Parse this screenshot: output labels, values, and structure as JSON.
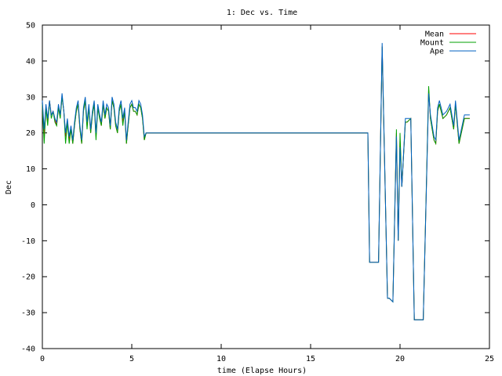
{
  "chart_data": {
    "type": "line",
    "title": "1: Dec vs. Time",
    "xlabel": "time (Elapse Hours)",
    "ylabel": "Dec",
    "xlim": [
      0,
      25
    ],
    "ylim": [
      -40,
      50
    ],
    "xticks": [
      0,
      5,
      10,
      15,
      20,
      25
    ],
    "yticks": [
      -40,
      -30,
      -20,
      -10,
      0,
      10,
      20,
      30,
      40,
      50
    ],
    "grid": false,
    "legend_position": "top-right",
    "series": [
      {
        "name": "Mean",
        "color": "#ff0000",
        "x": [
          0.0,
          0.1,
          0.2,
          0.3,
          0.4,
          0.5,
          0.6,
          0.7,
          0.8,
          0.9,
          1.0,
          1.1,
          1.2,
          1.3,
          1.4,
          1.5,
          1.6,
          1.7,
          1.8,
          1.9,
          2.0,
          2.1,
          2.2,
          2.3,
          2.4,
          2.5,
          2.6,
          2.7,
          2.8,
          2.9,
          3.0,
          3.1,
          3.2,
          3.3,
          3.4,
          3.5,
          3.6,
          3.7,
          3.8,
          3.9,
          4.0,
          4.1,
          4.2,
          4.3,
          4.4,
          4.5,
          4.6,
          4.7,
          4.8,
          4.9,
          5.0,
          5.1,
          5.2,
          5.3,
          5.4,
          5.5,
          5.6,
          5.7,
          5.8,
          18.2,
          18.3,
          18.5,
          18.6,
          18.8,
          19.0,
          19.3,
          19.4,
          19.6,
          19.8,
          19.9,
          20.0,
          20.1,
          20.3,
          20.4,
          20.6,
          20.8,
          20.9,
          21.0,
          21.3,
          21.6,
          21.7,
          21.8,
          21.9,
          22.0,
          22.1,
          22.2,
          22.4,
          22.6,
          22.8,
          23.0,
          23.1,
          23.3,
          23.6,
          23.9
        ],
        "y": [
          28,
          19,
          27,
          23,
          29,
          25,
          26,
          24,
          22,
          27,
          25,
          30,
          26,
          19,
          23,
          18,
          21,
          17,
          22,
          26,
          28,
          21,
          17,
          26,
          29,
          22,
          27,
          20,
          25,
          28,
          19,
          27,
          25,
          22,
          28,
          24,
          27,
          26,
          21,
          29,
          27,
          22,
          20,
          26,
          28,
          23,
          26,
          17,
          22,
          27,
          28,
          26,
          26,
          25,
          28,
          27,
          24,
          18,
          20,
          20,
          -16,
          -16,
          -16,
          -16,
          44,
          -26,
          -26,
          -27,
          20,
          -10,
          18,
          5,
          23,
          23,
          24,
          -32,
          -32,
          -32,
          -32,
          32,
          24,
          21,
          18,
          17,
          26,
          28,
          24,
          25,
          27,
          21,
          28,
          17,
          24,
          24
        ]
      },
      {
        "name": "Mount",
        "color": "#00a000",
        "x": [
          0.0,
          0.1,
          0.2,
          0.3,
          0.4,
          0.5,
          0.6,
          0.7,
          0.8,
          0.9,
          1.0,
          1.1,
          1.2,
          1.3,
          1.4,
          1.5,
          1.6,
          1.7,
          1.8,
          1.9,
          2.0,
          2.1,
          2.2,
          2.3,
          2.4,
          2.5,
          2.6,
          2.7,
          2.8,
          2.9,
          3.0,
          3.1,
          3.2,
          3.3,
          3.4,
          3.5,
          3.6,
          3.7,
          3.8,
          3.9,
          4.0,
          4.1,
          4.2,
          4.3,
          4.4,
          4.5,
          4.6,
          4.7,
          4.8,
          4.9,
          5.0,
          5.1,
          5.2,
          5.3,
          5.4,
          5.5,
          5.6,
          5.7,
          5.8,
          18.2,
          18.3,
          18.5,
          18.6,
          18.8,
          19.0,
          19.3,
          19.4,
          19.6,
          19.8,
          19.9,
          20.0,
          20.1,
          20.3,
          20.4,
          20.6,
          20.8,
          20.9,
          21.0,
          21.3,
          21.6,
          21.7,
          21.8,
          21.9,
          22.0,
          22.1,
          22.2,
          22.4,
          22.6,
          22.8,
          23.0,
          23.1,
          23.3,
          23.6,
          23.9
        ],
        "y": [
          28,
          17,
          27,
          22,
          29,
          24,
          26,
          23,
          22,
          27,
          24,
          30,
          26,
          17,
          23,
          17,
          21,
          17,
          22,
          26,
          28,
          21,
          17,
          26,
          29,
          21,
          27,
          20,
          25,
          28,
          18,
          27,
          24,
          22,
          28,
          24,
          27,
          26,
          21,
          29,
          27,
          22,
          20,
          26,
          28,
          22,
          26,
          17,
          22,
          27,
          28,
          26,
          26,
          25,
          28,
          27,
          24,
          18,
          20,
          20,
          -16,
          -16,
          -16,
          -16,
          44,
          -26,
          -26,
          -27,
          21,
          -10,
          20,
          5,
          23,
          23,
          24,
          -32,
          -32,
          -32,
          -32,
          33,
          24,
          21,
          18,
          17,
          26,
          28,
          24,
          25,
          27,
          21,
          28,
          17,
          24,
          24
        ]
      },
      {
        "name": "Ape",
        "color": "#0060c0",
        "x": [
          0.0,
          0.1,
          0.2,
          0.3,
          0.4,
          0.5,
          0.6,
          0.7,
          0.8,
          0.9,
          1.0,
          1.1,
          1.2,
          1.3,
          1.4,
          1.5,
          1.6,
          1.7,
          1.8,
          1.9,
          2.0,
          2.1,
          2.2,
          2.3,
          2.4,
          2.5,
          2.6,
          2.7,
          2.8,
          2.9,
          3.0,
          3.1,
          3.2,
          3.3,
          3.4,
          3.5,
          3.6,
          3.7,
          3.8,
          3.9,
          4.0,
          4.1,
          4.2,
          4.3,
          4.4,
          4.5,
          4.6,
          4.7,
          4.8,
          4.9,
          5.0,
          5.1,
          5.2,
          5.3,
          5.4,
          5.5,
          5.6,
          5.7,
          5.8,
          18.2,
          18.3,
          18.5,
          18.6,
          18.8,
          19.0,
          19.3,
          19.4,
          19.6,
          19.8,
          19.9,
          20.0,
          20.1,
          20.3,
          20.4,
          20.6,
          20.8,
          20.9,
          21.0,
          21.3,
          21.6,
          21.7,
          21.8,
          21.9,
          22.0,
          22.1,
          22.2,
          22.4,
          22.6,
          22.8,
          23.0,
          23.1,
          23.3,
          23.6,
          23.9
        ],
        "y": [
          29,
          21,
          28,
          24,
          29,
          25,
          26,
          24,
          23,
          28,
          25,
          31,
          26,
          20,
          24,
          19,
          22,
          18,
          23,
          27,
          29,
          22,
          18,
          27,
          30,
          23,
          28,
          21,
          26,
          29,
          20,
          28,
          25,
          23,
          29,
          25,
          28,
          27,
          22,
          30,
          28,
          23,
          21,
          27,
          29,
          24,
          27,
          18,
          23,
          28,
          29,
          27,
          27,
          26,
          29,
          28,
          25,
          19,
          20,
          20,
          -16,
          -16,
          -16,
          -16,
          45,
          -26,
          -26,
          -27,
          19,
          -10,
          16,
          5,
          24,
          24,
          24,
          -32,
          -32,
          -32,
          -32,
          31,
          25,
          22,
          19,
          18,
          27,
          29,
          25,
          26,
          28,
          22,
          29,
          18,
          25,
          25
        ]
      }
    ]
  }
}
